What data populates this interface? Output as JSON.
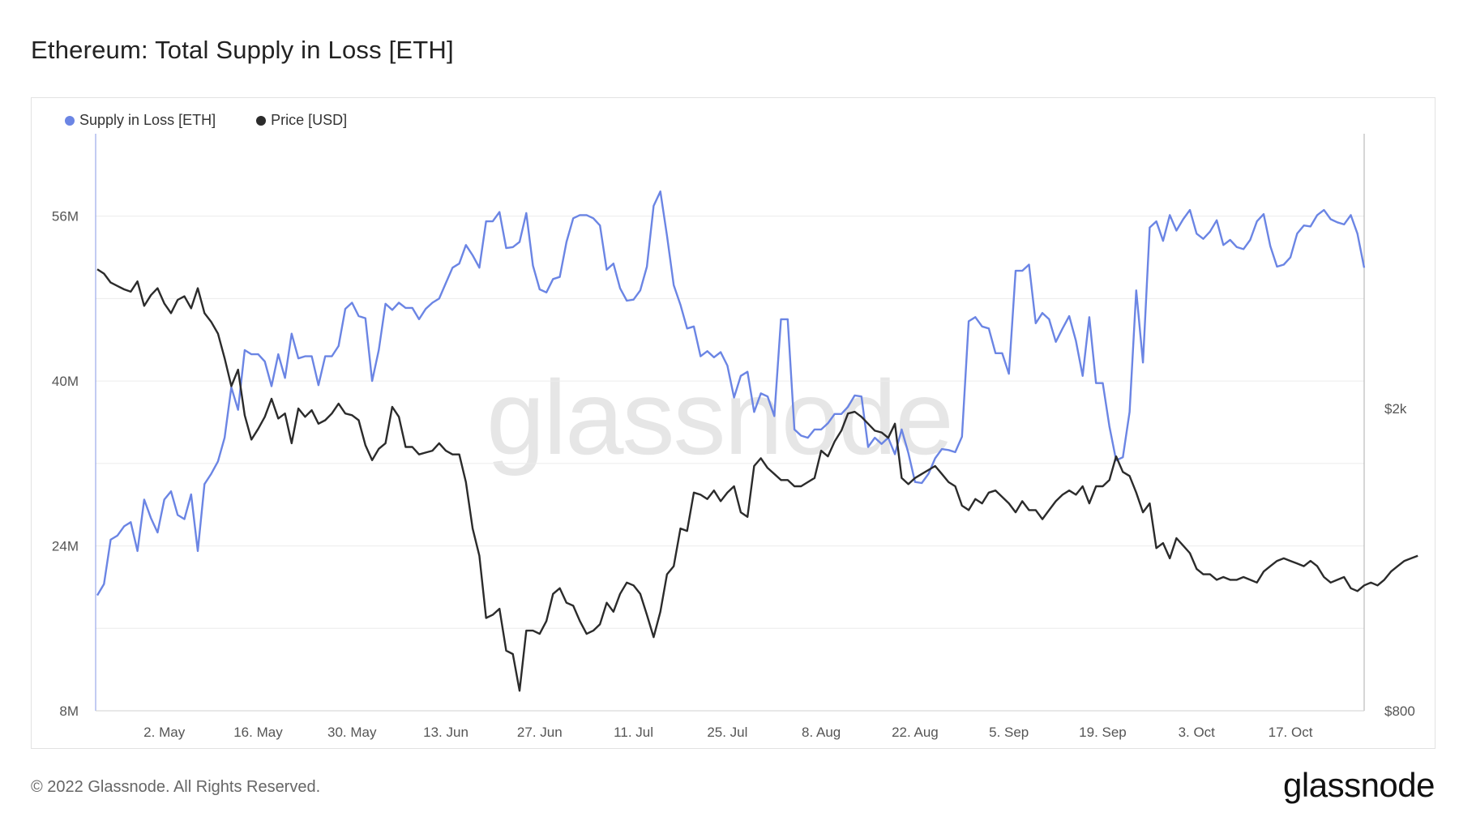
{
  "page": {
    "title": "Ethereum: Total Supply in Loss [ETH]",
    "copyright": "© 2022 Glassnode. All Rights Reserved.",
    "brand": "glassnode",
    "watermark": "glassnode"
  },
  "colors": {
    "supply": "#6b85e4",
    "price": "#2b2b2b",
    "grid": "#ececec",
    "axis": "#9aa9e8"
  },
  "legend": {
    "supply_label": "Supply in Loss [ETH]",
    "price_label": "Price [USD]"
  },
  "chart_data": {
    "type": "line",
    "title": "Ethereum: Total Supply in Loss [ETH]",
    "x_start": "2022-04-22",
    "x_ticks": [
      "2. May",
      "16. May",
      "30. May",
      "13. Jun",
      "27. Jun",
      "11. Jul",
      "25. Jul",
      "8. Aug",
      "22. Aug",
      "5. Sep",
      "19. Sep",
      "3. Oct",
      "17. Oct"
    ],
    "y_left": {
      "ticks": [
        "8M",
        "24M",
        "40M",
        "56M"
      ],
      "ylim": [
        8,
        64
      ]
    },
    "y_right": {
      "ticks": [
        "$800",
        "$2k"
      ],
      "scale": "log",
      "ylim": [
        800,
        4600
      ]
    },
    "grid": true,
    "legend_position": "top-left",
    "series": [
      {
        "name": "Supply in Loss [ETH]",
        "axis": "left",
        "unit": "M ETH",
        "values": [
          19.2,
          20.3,
          24.6,
          25.0,
          25.9,
          26.3,
          23.5,
          28.5,
          26.7,
          25.3,
          28.5,
          29.3,
          27.0,
          26.6,
          29.0,
          23.5,
          30.0,
          31.0,
          32.2,
          34.5,
          39.4,
          37.2,
          43.0,
          42.6,
          42.6,
          41.9,
          39.5,
          42.6,
          40.3,
          44.6,
          42.2,
          42.4,
          42.4,
          39.6,
          42.4,
          42.4,
          43.4,
          47.0,
          47.6,
          46.3,
          46.1,
          40.0,
          43.0,
          47.5,
          46.9,
          47.6,
          47.1,
          47.1,
          46.0,
          47.0,
          47.6,
          48.0,
          49.5,
          51.0,
          51.4,
          53.2,
          52.2,
          51.0,
          55.5,
          55.5,
          56.4,
          52.9,
          53.0,
          53.5,
          56.3,
          51.2,
          48.9,
          48.6,
          49.9,
          50.1,
          53.5,
          55.8,
          56.1,
          56.1,
          55.8,
          55.1,
          50.8,
          51.4,
          49.0,
          47.8,
          47.9,
          48.8,
          51.1,
          57.0,
          58.4,
          54.1,
          49.3,
          47.4,
          45.1,
          45.3,
          42.4,
          42.9,
          42.3,
          42.8,
          41.5,
          38.4,
          40.5,
          40.9,
          37.0,
          38.8,
          38.5,
          36.6,
          46.0,
          46.0,
          35.3,
          34.7,
          34.5,
          35.3,
          35.3,
          35.9,
          36.8,
          36.8,
          37.5,
          38.6,
          38.5,
          33.6,
          34.5,
          33.9,
          34.5,
          32.9,
          35.3,
          33.0,
          30.2,
          30.1,
          31.0,
          32.5,
          33.4,
          33.3,
          33.1,
          34.6,
          45.8,
          46.2,
          45.3,
          45.1,
          42.7,
          42.7,
          40.7,
          50.7,
          50.7,
          51.3,
          45.6,
          46.6,
          46.0,
          43.8,
          45.1,
          46.3,
          43.9,
          40.5,
          46.2,
          39.8,
          39.8,
          35.6,
          32.3,
          32.6,
          37.0,
          48.8,
          41.8,
          54.9,
          55.5,
          53.6,
          56.1,
          54.6,
          55.7,
          56.6,
          54.3,
          53.8,
          54.5,
          55.6,
          53.2,
          53.7,
          53.0,
          52.8,
          53.7,
          55.5,
          56.2,
          53.1,
          51.1,
          51.3,
          52.0,
          54.3,
          55.1,
          55.0,
          56.1,
          56.6,
          55.7,
          55.4,
          55.2,
          56.1,
          54.3,
          51.0
        ]
      },
      {
        "name": "Price [USD]",
        "axis": "right",
        "unit": "USD",
        "values": [
          3050,
          3010,
          2930,
          2900,
          2870,
          2850,
          2940,
          2730,
          2820,
          2880,
          2750,
          2670,
          2780,
          2810,
          2710,
          2880,
          2670,
          2600,
          2510,
          2330,
          2140,
          2250,
          1960,
          1820,
          1880,
          1950,
          2060,
          1940,
          1970,
          1800,
          2000,
          1950,
          1990,
          1910,
          1930,
          1970,
          2030,
          1970,
          1960,
          1930,
          1790,
          1710,
          1770,
          1800,
          2010,
          1950,
          1780,
          1780,
          1740,
          1750,
          1760,
          1800,
          1760,
          1740,
          1740,
          1600,
          1390,
          1280,
          1060,
          1070,
          1090,
          960,
          950,
          850,
          1020,
          1020,
          1010,
          1050,
          1140,
          1160,
          1110,
          1100,
          1050,
          1010,
          1020,
          1040,
          1110,
          1080,
          1140,
          1180,
          1170,
          1140,
          1070,
          1000,
          1080,
          1210,
          1240,
          1390,
          1380,
          1550,
          1540,
          1520,
          1560,
          1510,
          1550,
          1580,
          1460,
          1440,
          1680,
          1720,
          1670,
          1640,
          1610,
          1610,
          1580,
          1580,
          1600,
          1620,
          1760,
          1730,
          1810,
          1870,
          1970,
          1980,
          1950,
          1910,
          1870,
          1860,
          1830,
          1910,
          1620,
          1590,
          1620,
          1640,
          1660,
          1680,
          1640,
          1600,
          1580,
          1490,
          1470,
          1520,
          1500,
          1550,
          1560,
          1530,
          1500,
          1460,
          1510,
          1470,
          1470,
          1430,
          1470,
          1510,
          1540,
          1560,
          1540,
          1580,
          1500,
          1580,
          1580,
          1610,
          1730,
          1650,
          1630,
          1550,
          1460,
          1500,
          1310,
          1330,
          1270,
          1350,
          1320,
          1290,
          1230,
          1210,
          1210,
          1190,
          1200,
          1190,
          1190,
          1200,
          1190,
          1180,
          1220,
          1240,
          1260,
          1270,
          1260,
          1250,
          1240,
          1260,
          1240,
          1200,
          1180,
          1190,
          1200,
          1160,
          1150,
          1170,
          1180,
          1170,
          1190,
          1220,
          1240,
          1260,
          1270,
          1280
        ]
      }
    ]
  }
}
